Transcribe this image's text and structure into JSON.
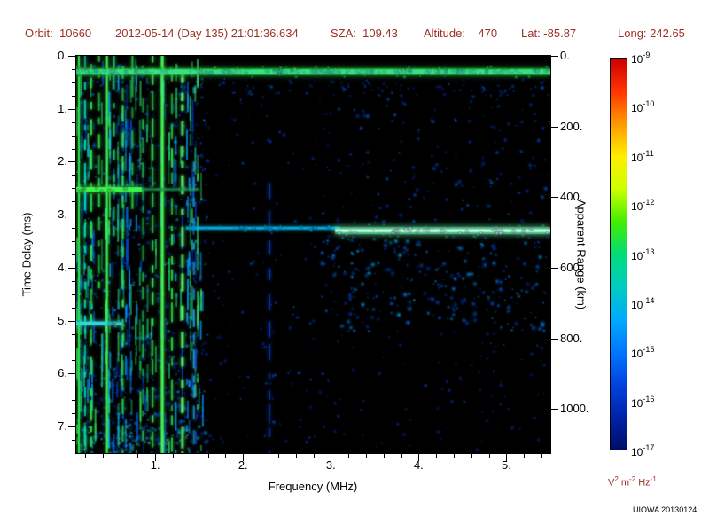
{
  "header": {
    "items": [
      "Orbit:  10660",
      "2012-05-14 (Day 135) 21:01:36.634",
      "SZA:  109.43",
      "Altitude:    470",
      "Lat: -85.87",
      "Long: 242.65"
    ]
  },
  "colors": {
    "annotation_text": "#9e2f26",
    "axis_text": "#000000",
    "plot_background": "#000000",
    "page_background": "#ffffff"
  },
  "footer": {
    "credit": "UIOWA 20130124"
  },
  "chart_data": {
    "type": "heatmap",
    "title": "",
    "xlabel": "Frequency (MHz)",
    "ylabel_left": "Time Delay (ms)",
    "ylabel_right": "Apparent Range (km)",
    "xlim": [
      0.1,
      5.5
    ],
    "ylim_ms": [
      0,
      7.5
    ],
    "km_per_ms": 150,
    "x_ticks": [
      1,
      2,
      3,
      4,
      5
    ],
    "x_tick_labels": [
      "1.",
      "2.",
      "3.",
      "4.",
      "5."
    ],
    "x_minor_step": 0.2,
    "y_ticks_ms": [
      0,
      1,
      2,
      3,
      4,
      5,
      6,
      7
    ],
    "y_tick_labels": [
      "0.",
      "1.",
      "2.",
      "3.",
      "4.",
      "5.",
      "6.",
      "7."
    ],
    "y_minor_step": 0.25,
    "right_ticks_km": [
      0,
      200,
      400,
      600,
      800,
      1000
    ],
    "right_tick_labels": [
      "0.",
      "200.",
      "400.",
      "600.",
      "800.",
      "1000."
    ],
    "colorbar": {
      "scale": "log",
      "max_exponent": -9,
      "min_exponent": -17,
      "tick_exponents": [
        "-9",
        "-10",
        "-11",
        "-12",
        "-13",
        "-14",
        "-15",
        "-16",
        "-17"
      ],
      "unit_parts": [
        {
          "t": "V"
        },
        {
          "s": "2"
        },
        {
          "t": " m"
        },
        {
          "s": "-2"
        },
        {
          "t": " Hz"
        },
        {
          "s": "-1"
        }
      ],
      "gradient": [
        "#cc0000",
        "#ff3300",
        "#ff9900",
        "#ffee00",
        "#ccff00",
        "#44ee00",
        "#00dd77",
        "#00ccc0",
        "#00aaff",
        "#0077ff",
        "#0044e0",
        "#0022aa",
        "#000d66"
      ]
    },
    "features": {
      "noise_regions": [
        {
          "f": [
            0.1,
            1.6
          ],
          "d": [
            0.15,
            7.5
          ],
          "n": 620,
          "rmax": 3,
          "palette": [
            "#0030b0",
            "#0040d0",
            "#0058e8",
            "#0090ff",
            "#00c8e8"
          ]
        },
        {
          "f": [
            0.1,
            1.6
          ],
          "d": [
            5.2,
            7.5
          ],
          "n": 200,
          "rmax": 3.6,
          "palette": [
            "#0038c0",
            "#0050dd",
            "#009dff"
          ]
        },
        {
          "f": [
            0.15,
            1.5
          ],
          "d": [
            7.0,
            7.5
          ],
          "n": 90,
          "rmax": 3,
          "palette": [
            "#00a8e8",
            "#19c9f0",
            "#2fe0a0"
          ]
        },
        {
          "f": [
            1.6,
            3.05
          ],
          "d": [
            0.4,
            7.5
          ],
          "n": 160,
          "rmax": 2.8,
          "palette": [
            "#0030b0",
            "#0046d0",
            "#0060e8"
          ]
        },
        {
          "f": [
            3.05,
            5.5
          ],
          "d": [
            0.55,
            3.15
          ],
          "n": 180,
          "rmax": 3.2,
          "palette": [
            "#0034b8",
            "#004cd4",
            "#0070f0"
          ]
        },
        {
          "f": [
            2.9,
            5.5
          ],
          "d": [
            3.4,
            5.2
          ],
          "n": 290,
          "rmax": 3.8,
          "palette": [
            "#0040cc",
            "#0058e0",
            "#0080ff",
            "#00b4ff"
          ]
        },
        {
          "f": [
            3.0,
            5.5
          ],
          "d": [
            5.2,
            7.45
          ],
          "n": 90,
          "rmax": 2.8,
          "palette": [
            "#0030b0",
            "#0048d0"
          ]
        },
        {
          "f": [
            0.1,
            5.5
          ],
          "d": [
            0.45,
            0.75
          ],
          "n": 80,
          "rmax": 2.2,
          "palette": [
            "#0040cc",
            "#0060e8"
          ]
        }
      ],
      "column_streaks": {
        "f": [
          0.1,
          1.55
        ],
        "count": 95,
        "seg_min": 2,
        "seg_max": 8,
        "palette": [
          "#0040cc",
          "#0063e0",
          "#00a0ff",
          "#18c060",
          "#2fe060"
        ]
      },
      "vertical_lines": [
        {
          "f": 0.13,
          "d": [
            0,
            7.5
          ],
          "color": "#2fe84a",
          "w": 2,
          "dash": false
        },
        {
          "f": 0.2,
          "d": [
            0,
            7.5
          ],
          "color": "#00dcb4",
          "w": 2,
          "dash": true
        },
        {
          "f": 0.27,
          "d": [
            0.15,
            7.5
          ],
          "color": "#2fe84a",
          "w": 2,
          "dash": true
        },
        {
          "f": 0.36,
          "d": [
            0,
            4.6
          ],
          "color": "#22cc44",
          "w": 2,
          "dash": true
        },
        {
          "f": 0.45,
          "d": [
            0,
            7.5
          ],
          "color": "#3cf555",
          "w": 2,
          "dash": false
        },
        {
          "f": 0.53,
          "d": [
            0,
            3.4
          ],
          "color": "#1fbf70",
          "w": 2,
          "dash": true
        },
        {
          "f": 0.63,
          "d": [
            0.2,
            7.5
          ],
          "color": "#2ddd5a",
          "w": 2,
          "dash": true
        },
        {
          "f": 0.74,
          "d": [
            0,
            3.0
          ],
          "color": "#21c24a",
          "w": 2,
          "dash": true
        },
        {
          "f": 0.86,
          "d": [
            0.8,
            7.5
          ],
          "color": "#1fae52",
          "w": 2,
          "dash": true
        },
        {
          "f": 0.97,
          "d": [
            0,
            7.5
          ],
          "color": "#2fdd50",
          "w": 2,
          "dash": true
        },
        {
          "f": 1.08,
          "d": [
            0,
            7.5
          ],
          "color": "#44f555",
          "w": 3,
          "dash": false
        },
        {
          "f": 1.19,
          "d": [
            0.3,
            7.5
          ],
          "color": "#2bd24a",
          "w": 2,
          "dash": true
        },
        {
          "f": 1.31,
          "d": [
            0.3,
            7.5
          ],
          "color": "#52f868",
          "w": 3,
          "dash": true
        },
        {
          "f": 1.44,
          "d": [
            2.0,
            7.5
          ],
          "color": "#1f93c9",
          "w": 2,
          "dash": true
        },
        {
          "f": 2.3,
          "d": [
            2.4,
            7.5
          ],
          "color": "#0038b8",
          "w": 2,
          "dash": true
        }
      ],
      "horizontal_echoes": [
        {
          "d": 0.3,
          "f": [
            0.1,
            5.5
          ],
          "color": "#22cc44",
          "h": 7,
          "glow": 6,
          "alpha": 0.85
        },
        {
          "d": 0.3,
          "f": [
            0.1,
            5.5
          ],
          "color": "#6cf56c",
          "h": 3,
          "glow": 3,
          "alpha": 1
        },
        {
          "d": 0.3,
          "f": [
            0.1,
            5.5
          ],
          "color": "#00d8c0",
          "h": 2,
          "glow": 2,
          "alpha": 0.5
        },
        {
          "d": 2.52,
          "f": [
            0.1,
            0.85
          ],
          "color": "#3cf54c",
          "h": 5,
          "glow": 6,
          "alpha": 1
        },
        {
          "d": 2.52,
          "f": [
            0.85,
            1.5
          ],
          "color": "#1fa85a",
          "h": 3,
          "glow": 3,
          "alpha": 0.5
        },
        {
          "d": 3.25,
          "f": [
            1.35,
            3.1
          ],
          "color": "#00b4e8",
          "h": 3,
          "glow": 4,
          "alpha": 0.9
        },
        {
          "d": 3.3,
          "f": [
            3.05,
            5.5
          ],
          "color": "#37f58c",
          "h": 8,
          "glow": 8,
          "alpha": 0.55
        },
        {
          "d": 3.3,
          "f": [
            3.05,
            5.5
          ],
          "color": "#c8fff0",
          "h": 3,
          "glow": 6,
          "alpha": 1
        },
        {
          "d": 5.05,
          "f": [
            0.1,
            0.62
          ],
          "color": "#2fd8d8",
          "h": 4,
          "glow": 5,
          "alpha": 1
        }
      ]
    }
  }
}
